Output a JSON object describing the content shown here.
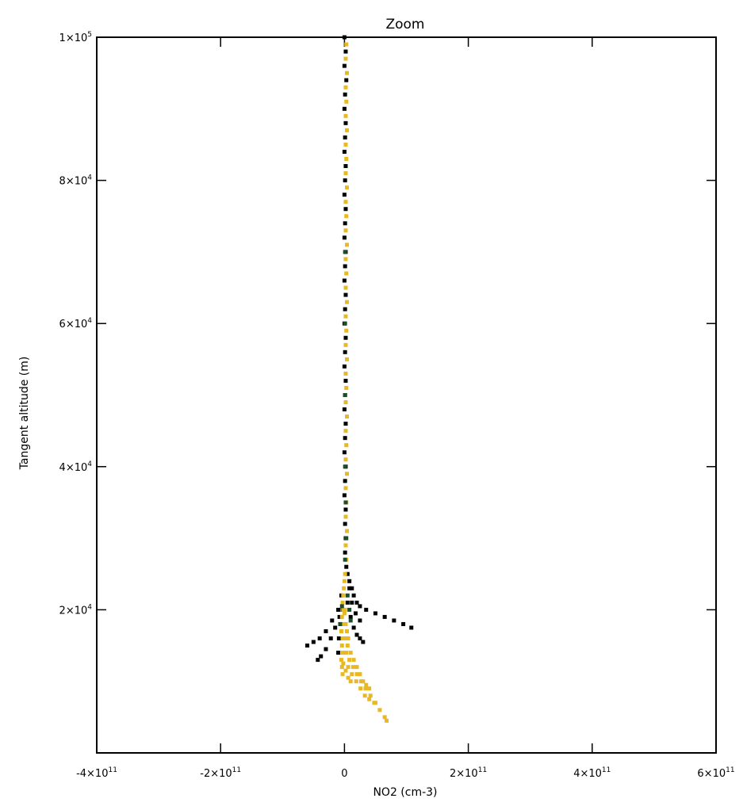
{
  "chart_data": {
    "type": "scatter",
    "title": "Zoom",
    "xlabel": "NO2 (cm-3)",
    "ylabel": "Tangent altitude (m)",
    "xlim": [
      -400000000000,
      600000000000
    ],
    "ylim": [
      0,
      100000
    ],
    "x_ticks": [
      {
        "value": -400000000000,
        "mant": "-4×10",
        "exp": "11"
      },
      {
        "value": -200000000000,
        "mant": "-2×10",
        "exp": "11"
      },
      {
        "value": 0,
        "mant": "0",
        "exp": ""
      },
      {
        "value": 200000000000,
        "mant": "2×10",
        "exp": "11"
      },
      {
        "value": 400000000000,
        "mant": "4×10",
        "exp": "11"
      },
      {
        "value": 600000000000,
        "mant": "6×10",
        "exp": "11"
      }
    ],
    "y_ticks": [
      {
        "value": 20000,
        "mant": "2×10",
        "exp": "4"
      },
      {
        "value": 40000,
        "mant": "4×10",
        "exp": "4"
      },
      {
        "value": 60000,
        "mant": "6×10",
        "exp": "4"
      },
      {
        "value": 80000,
        "mant": "8×10",
        "exp": "4"
      },
      {
        "value": 100000,
        "mant": "1×10",
        "exp": "5"
      }
    ],
    "grid": false,
    "colors": {
      "series_a": "#000000",
      "series_b": "#e8b923",
      "series_c": "#1f4d2a"
    },
    "series": [
      {
        "color_key": "series_a",
        "points": [
          [
            0,
            100000
          ],
          [
            2000000000,
            98000
          ],
          [
            0,
            96000
          ],
          [
            3000000000,
            94000
          ],
          [
            1000000000,
            92000
          ],
          [
            0,
            90000
          ],
          [
            2000000000,
            88000
          ],
          [
            1000000000,
            86000
          ],
          [
            0,
            84000
          ],
          [
            2000000000,
            82000
          ],
          [
            1000000000,
            80000
          ],
          [
            0,
            78000
          ],
          [
            2000000000,
            76000
          ],
          [
            1000000000,
            74000
          ],
          [
            0,
            72000
          ],
          [
            2000000000,
            70000
          ],
          [
            1000000000,
            68000
          ],
          [
            0,
            66000
          ],
          [
            2000000000,
            64000
          ],
          [
            1000000000,
            62000
          ],
          [
            0,
            60000
          ],
          [
            2000000000,
            58000
          ],
          [
            1000000000,
            56000
          ],
          [
            0,
            54000
          ],
          [
            2000000000,
            52000
          ],
          [
            1000000000,
            50000
          ],
          [
            0,
            48000
          ],
          [
            2000000000,
            46000
          ],
          [
            1000000000,
            44000
          ],
          [
            0,
            42000
          ],
          [
            2000000000,
            40000
          ],
          [
            1000000000,
            38000
          ],
          [
            0,
            36000
          ],
          [
            2000000000,
            34000
          ],
          [
            1000000000,
            32000
          ],
          [
            2000000000,
            30000
          ],
          [
            1000000000,
            28000
          ],
          [
            3000000000,
            26000
          ],
          [
            5000000000,
            25000
          ],
          [
            8000000000,
            24000
          ],
          [
            12000000000,
            23000
          ],
          [
            15000000000,
            22000
          ],
          [
            20000000000,
            21000
          ],
          [
            25000000000,
            20500
          ],
          [
            35000000000,
            20000
          ],
          [
            50000000000,
            19500
          ],
          [
            65000000000,
            19000
          ],
          [
            80000000000,
            18500
          ],
          [
            95000000000,
            18000
          ],
          [
            108000000000,
            17500
          ],
          [
            -5000000000,
            22000
          ],
          [
            -10000000000,
            20000
          ],
          [
            -20000000000,
            18500
          ],
          [
            -30000000000,
            17000
          ],
          [
            -40000000000,
            16000
          ],
          [
            -50000000000,
            15500
          ],
          [
            -60000000000,
            15000
          ],
          [
            -8000000000,
            19000
          ],
          [
            -15000000000,
            17500
          ],
          [
            -22000000000,
            16000
          ],
          [
            -30000000000,
            14500
          ],
          [
            -38000000000,
            13500
          ],
          [
            -43000000000,
            13000
          ],
          [
            5000000000,
            21000
          ],
          [
            10000000000,
            19000
          ],
          [
            15000000000,
            17500
          ],
          [
            20000000000,
            16500
          ],
          [
            25000000000,
            16000
          ],
          [
            30000000000,
            15500
          ],
          [
            -3000000000,
            20000
          ],
          [
            -6000000000,
            18000
          ],
          [
            -9000000000,
            16000
          ],
          [
            -10000000000,
            14000
          ],
          [
            8000000000,
            23000
          ],
          [
            12000000000,
            21000
          ],
          [
            18000000000,
            19500
          ],
          [
            25000000000,
            18500
          ]
        ]
      },
      {
        "color_key": "series_b",
        "points": [
          [
            3000000000,
            99000
          ],
          [
            2000000000,
            97000
          ],
          [
            4000000000,
            95000
          ],
          [
            2000000000,
            93000
          ],
          [
            3000000000,
            91000
          ],
          [
            2000000000,
            89000
          ],
          [
            4000000000,
            87000
          ],
          [
            2000000000,
            85000
          ],
          [
            3000000000,
            83000
          ],
          [
            2000000000,
            81000
          ],
          [
            4000000000,
            79000
          ],
          [
            2000000000,
            77000
          ],
          [
            3000000000,
            75000
          ],
          [
            2000000000,
            73000
          ],
          [
            4000000000,
            71000
          ],
          [
            2000000000,
            69000
          ],
          [
            3000000000,
            67000
          ],
          [
            2000000000,
            65000
          ],
          [
            4000000000,
            63000
          ],
          [
            2000000000,
            61000
          ],
          [
            3000000000,
            59000
          ],
          [
            2000000000,
            57000
          ],
          [
            4000000000,
            55000
          ],
          [
            2000000000,
            53000
          ],
          [
            3000000000,
            51000
          ],
          [
            2000000000,
            49000
          ],
          [
            4000000000,
            47000
          ],
          [
            2000000000,
            45000
          ],
          [
            3000000000,
            43000
          ],
          [
            2000000000,
            41000
          ],
          [
            4000000000,
            39000
          ],
          [
            2000000000,
            37000
          ],
          [
            3000000000,
            35000
          ],
          [
            2000000000,
            33000
          ],
          [
            4000000000,
            31000
          ],
          [
            2000000000,
            29000
          ],
          [
            3000000000,
            27000
          ],
          [
            1000000000,
            25000
          ],
          [
            0,
            24000
          ],
          [
            -1000000000,
            23000
          ],
          [
            -2000000000,
            22000
          ],
          [
            -3000000000,
            21000
          ],
          [
            -2000000000,
            20000
          ],
          [
            0,
            19500
          ],
          [
            -4000000000,
            19000
          ],
          [
            -2000000000,
            18000
          ],
          [
            -5000000000,
            17000
          ],
          [
            -3000000000,
            16000
          ],
          [
            -4000000000,
            15000
          ],
          [
            -3000000000,
            14000
          ],
          [
            -5000000000,
            13000
          ],
          [
            -4000000000,
            12000
          ],
          [
            -3000000000,
            11000
          ],
          [
            0,
            16000
          ],
          [
            5000000000,
            15000
          ],
          [
            10000000000,
            14000
          ],
          [
            15000000000,
            13000
          ],
          [
            20000000000,
            12000
          ],
          [
            25000000000,
            11000
          ],
          [
            30000000000,
            10000
          ],
          [
            35000000000,
            9500
          ],
          [
            40000000000,
            9000
          ],
          [
            3000000000,
            14000
          ],
          [
            8000000000,
            13000
          ],
          [
            14000000000,
            12000
          ],
          [
            20000000000,
            11000
          ],
          [
            27000000000,
            10000
          ],
          [
            34000000000,
            9000
          ],
          [
            42000000000,
            8000
          ],
          [
            50000000000,
            7000
          ],
          [
            57000000000,
            6000
          ],
          [
            65000000000,
            5000
          ],
          [
            68000000000,
            4500
          ],
          [
            6000000000,
            12000
          ],
          [
            12000000000,
            11000
          ],
          [
            19000000000,
            10000
          ],
          [
            26000000000,
            9000
          ],
          [
            33000000000,
            8000
          ],
          [
            40000000000,
            7500
          ],
          [
            48000000000,
            7000
          ],
          [
            -2000000000,
            12500
          ],
          [
            2000000000,
            11500
          ],
          [
            6000000000,
            10500
          ],
          [
            10000000000,
            10000
          ],
          [
            1000000000,
            20000
          ],
          [
            2000000000,
            18000
          ],
          [
            4000000000,
            17000
          ],
          [
            6000000000,
            16000
          ]
        ]
      },
      {
        "color_key": "series_c",
        "points": [
          [
            1000000000,
            70000
          ],
          [
            1000000000,
            60000
          ],
          [
            1000000000,
            50000
          ],
          [
            1000000000,
            40000
          ],
          [
            2000000000,
            35000
          ],
          [
            3000000000,
            30000
          ],
          [
            1000000000,
            27000
          ],
          [
            5000000000,
            22000
          ],
          [
            8000000000,
            20000
          ],
          [
            10000000000,
            18500
          ],
          [
            -4000000000,
            20500
          ],
          [
            -7000000000,
            18000
          ]
        ]
      }
    ]
  }
}
